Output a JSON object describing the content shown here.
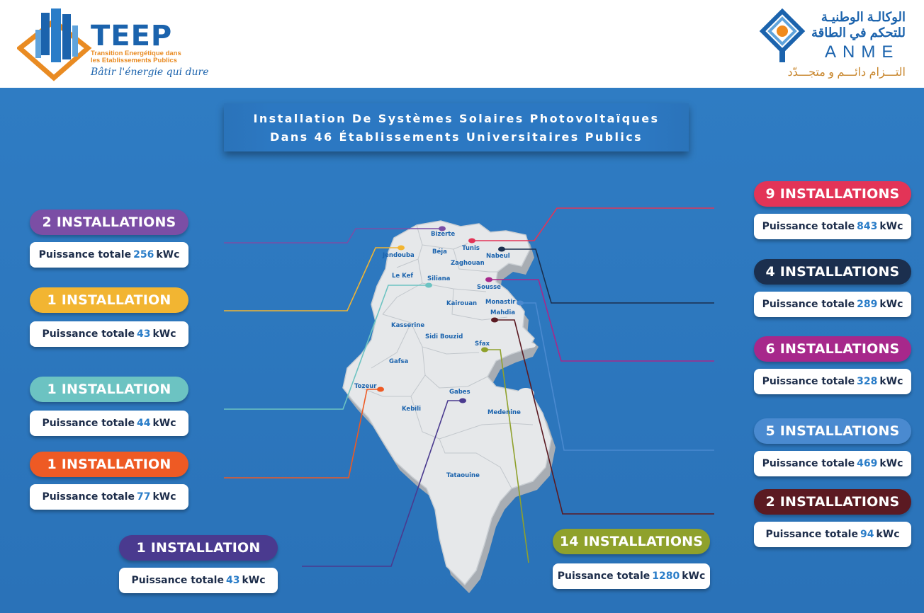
{
  "header": {
    "teep": {
      "name": "TEEP",
      "subtitle_line1": "Transition Energétique dans",
      "subtitle_line2": "les Etablissements Publics",
      "slogan": "Bâtir l'énergie qui dure"
    },
    "anme": {
      "arabic_line1": "الوكالـة الوطنيـة",
      "arabic_line2": "للتحكم في الطاقة",
      "name": "ANME",
      "arabic_slogan": "التـــزام دائـــم و متجـــدّد"
    }
  },
  "title": {
    "line1": "Installation De Systèmes Solaires Photovoltaïques",
    "line2": "Dans 46 Établissements Universitaires Publics"
  },
  "cities": [
    "Bizerte",
    "Jendouba",
    "Béja",
    "Tunis",
    "Nabeul",
    "Zaghouan",
    "Le Kef",
    "Siliana",
    "Sousse",
    "Kairouan",
    "Monastir",
    "Mahdia",
    "Kasserine",
    "Sidi Bouzid",
    "Sfax",
    "Gafsa",
    "Tozeur",
    "Gabes",
    "Kebili",
    "Medenine",
    "Tataouine"
  ],
  "power_prefix": "Puissance totale",
  "regions": [
    {
      "id": "bizerte",
      "installations": "2 INSTALLATIONS",
      "value": "256",
      "unit": "kWc",
      "color": "#7b4ea5"
    },
    {
      "id": "jendouba",
      "installations": "1 INSTALLATION",
      "value": "43",
      "unit": "kWc",
      "color": "#f2b532"
    },
    {
      "id": "siliana",
      "installations": "1 INSTALLATION",
      "value": "44",
      "unit": "kWc",
      "color": "#6cc3c2"
    },
    {
      "id": "tozeur",
      "installations": "1 INSTALLATION",
      "value": "77",
      "unit": "kWc",
      "color": "#ee5a24"
    },
    {
      "id": "gabes",
      "installations": "1 INSTALLATION",
      "value": "43",
      "unit": "kWc",
      "color": "#4a3a8f"
    },
    {
      "id": "sfax",
      "installations": "14 INSTALLATIONS",
      "value": "1280",
      "unit": "kWc",
      "color": "#8fa12c"
    },
    {
      "id": "tunis",
      "installations": "9 INSTALLATIONS",
      "value": "843",
      "unit": "kWc",
      "color": "#e33457"
    },
    {
      "id": "nabeul",
      "installations": "4 INSTALLATIONS",
      "value": "289",
      "unit": "kWc",
      "color": "#1b2f4e"
    },
    {
      "id": "sousse",
      "installations": "6 INSTALLATIONS",
      "value": "328",
      "unit": "kWc",
      "color": "#a7288b"
    },
    {
      "id": "monastir",
      "installations": "5 INSTALLATIONS",
      "value": "469",
      "unit": "kWc",
      "color": "#4a8ad0"
    },
    {
      "id": "mahdia",
      "installations": "2 INSTALLATIONS",
      "value": "94",
      "unit": "kWc",
      "color": "#5b1a22"
    }
  ]
}
